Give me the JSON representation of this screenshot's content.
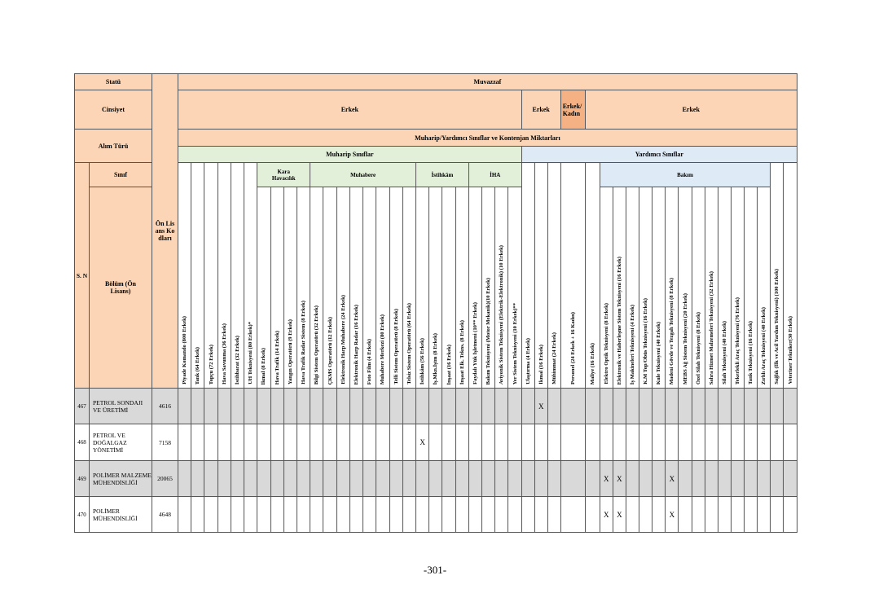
{
  "header": {
    "statu_label": "Statü",
    "statu": "Muvazzaf",
    "cinsiyet_label": "Cinsiyet",
    "cinsiyet": [
      "Erkek",
      "Erkek",
      "Erkek/ Kadın",
      "Erkek"
    ],
    "alim_turu_label": "Alım Türü",
    "kontenjan_title": "Muharip/Yardımcı Sınıflar ve Kontenjan Miktarları",
    "sinif_label": "Sınıf",
    "sn_label": "S. N",
    "bolum_label": "Bölüm (Ön Lisans)",
    "kod_label": "Ön Lisans Kodları"
  },
  "muharip": {
    "label": "Muharip Sınıflar",
    "columns": [
      "Piyade Komando (800 Erkek)",
      "Tank (64 Erkek)",
      "Topçu (72 Erkek)",
      "Hava Savunma (36 Erkek)",
      "İstihbarat (32 Erkek)",
      "UH Teknisyeni (80 Erkek)*",
      {
        "group": "Kara Havacılık",
        "columns": [
          "İkmal (8 Erkek)",
          "Hava Trafik (14 Erkek)",
          "Yangın Operatörü (9 Erkek)",
          "Hava Trafik Radar Sistem (8 Erkek)"
        ]
      },
      {
        "group": "Muhabere",
        "columns": [
          "Bilgi Sistem Operatörü (32 Erkek)",
          "ÇKMS Operatörü (12 Erkek)",
          "Elektronik Harp Muhabere (24 Erkek)",
          "Elektronik Harp Radar (16 Erkek)",
          "Foto Film (4 Erkek)",
          "Muhabere Merkezi (80 Erkek)",
          "Telli Sistem Operatörü (8 Erkek)",
          "Telsiz Sistem Operatörü (64 Erkek)"
        ]
      },
      {
        "group": "İstihkâm",
        "columns": [
          "İstihkâm (56 Erkek)",
          "İş.Mkn.İştm (8 Erkek)",
          "İnşaat (16 Erkek)",
          "İnşaat Elk. Tekns. (8 Erkek)"
        ]
      },
      {
        "group": "İHA",
        "columns": [
          "Faydalı Yük İşletmeni (10** Erkek)",
          "Bakım Teknisyeni (Motor Mekanik)(10 Erkek)",
          "Aviyonik Sistem Teknisyeni (Elektrik-Elektronik) (10 Erkek)",
          "Yer Sistem Teknisyeni (10 Erkek)**"
        ]
      }
    ]
  },
  "yardimci": {
    "label": "Yardımcı Sınıflar",
    "columns": [
      "Ulaştırma (4 Erkek)",
      "İkmal (16 Erkek)",
      "Mühimmat (24 Erkek)",
      "Personel (24 Erkek + 16 Kadın)",
      "Maliye (16 Erkek)",
      {
        "group": "Bakım",
        "columns": [
          "Elektro Optik Teknisyeni (8 Erkek)",
          "Elektronik ve Haberleşme Sistem Teknisyeni (16 Erkek)",
          "İş Makineleri Teknisyeni (4 Erkek)",
          "K.M Top/Obüs Teknisyeni (16 Erkek)",
          "Kule Teknisyeni (40 Erkek)",
          "Madeni Gövde ve Tezgah Teknisyeni (8 Erkek)",
          "MEBS Ağ Sistem Teknisyeni (20 Erkek)",
          "Özel Silah Teknisyeni (8 Erkek)",
          "Sahra Hizmet Malzemeleri Teknisyeni (32 Erkek)",
          "Silah Teknisyeni (40 Erkek)",
          "Tekerlekli Araç Teknisyeni (76 Erkek)",
          "Tank Teknisyeni (16 Erkek)",
          "Zırhlı Araç Teknisyeni (40 Erkek)"
        ]
      },
      "Sağlık (İlk ve Acil Yardım Teknisyeni) (100 Erkek)",
      "Veteriner Tekniker(30 Erkek)"
    ]
  },
  "rows": [
    {
      "sn": "467",
      "bolum": "PETROL SONDAJI VE ÜRETİMİ",
      "kod": "4616",
      "cells": [
        null,
        null,
        null,
        null,
        null,
        null,
        null,
        null,
        null,
        null,
        null,
        null,
        null,
        null,
        null,
        null,
        null,
        null,
        null,
        null,
        null,
        null,
        null,
        null,
        null,
        null,
        null,
        "X",
        null,
        null,
        null,
        null,
        null,
        null,
        null,
        null,
        null,
        null,
        null,
        null,
        null,
        null,
        null,
        null,
        null,
        null
      ]
    },
    {
      "sn": "468",
      "bolum": "PETROL VE DOĞALGAZ YÖNETİMİ",
      "kod": "7158",
      "cells": [
        null,
        null,
        null,
        null,
        null,
        null,
        null,
        null,
        null,
        null,
        null,
        null,
        null,
        null,
        null,
        null,
        null,
        null,
        "X",
        null,
        null,
        null,
        null,
        null,
        null,
        null,
        null,
        null,
        null,
        null,
        null,
        null,
        null,
        null,
        null,
        null,
        null,
        null,
        null,
        null,
        null,
        null,
        null,
        null,
        null,
        null
      ]
    },
    {
      "sn": "469",
      "bolum": "POLİMER MALZEME MÜHENDİSLİĞİ",
      "kod": "20065",
      "cells": [
        null,
        null,
        null,
        null,
        null,
        null,
        null,
        null,
        null,
        null,
        null,
        null,
        null,
        null,
        null,
        null,
        null,
        null,
        null,
        null,
        null,
        null,
        null,
        null,
        null,
        null,
        null,
        null,
        null,
        null,
        null,
        "X",
        "X",
        null,
        null,
        null,
        "X",
        null,
        null,
        null,
        null,
        null,
        null,
        null,
        null,
        null
      ]
    },
    {
      "sn": "470",
      "bolum": "POLİMER MÜHENDİSLİĞİ",
      "kod": "4648",
      "cells": [
        null,
        null,
        null,
        null,
        null,
        null,
        null,
        null,
        null,
        null,
        null,
        null,
        null,
        null,
        null,
        null,
        null,
        null,
        null,
        null,
        null,
        null,
        null,
        null,
        null,
        null,
        null,
        null,
        null,
        null,
        null,
        "X",
        "X",
        null,
        null,
        null,
        "X",
        null,
        null,
        null,
        null,
        null,
        null,
        null,
        null,
        null
      ]
    }
  ],
  "footer": {
    "page": "-301-"
  }
}
